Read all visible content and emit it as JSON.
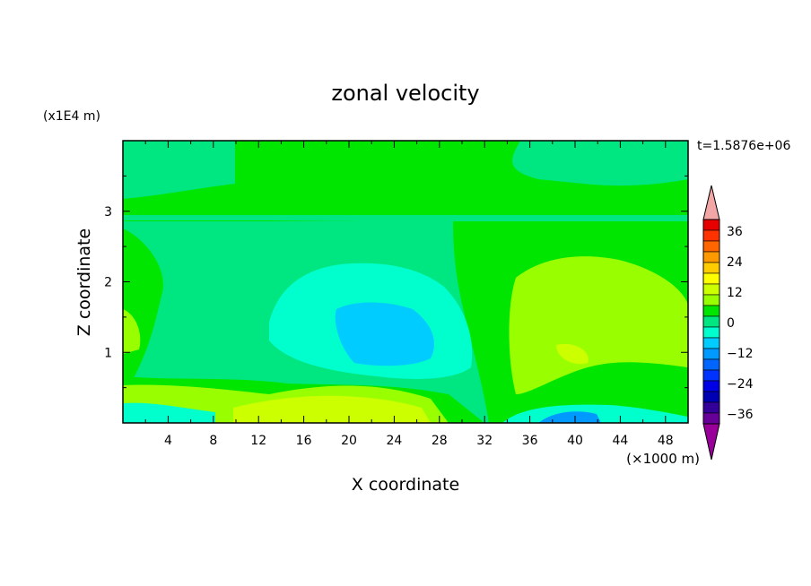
{
  "chart_data": {
    "type": "heatmap",
    "title": "zonal velocity",
    "xlabel": "X coordinate",
    "ylabel": "Z coordinate",
    "x_unit": "(×1000 m)",
    "y_unit": "(x1E4 m)",
    "time_label": "t=1.5876e+06",
    "xlim": [
      0,
      50
    ],
    "ylim": [
      0,
      4
    ],
    "x_ticks": [
      "4",
      "8",
      "12",
      "16",
      "20",
      "24",
      "28",
      "32",
      "36",
      "40",
      "44",
      "48"
    ],
    "y_ticks": [
      "1",
      "2",
      "3"
    ],
    "colorbar": {
      "labels": [
        "36",
        "24",
        "12",
        "0",
        "−12",
        "−24",
        "−36"
      ],
      "colors_top_to_bottom": [
        "#f2a6a6",
        "#e60000",
        "#ff3300",
        "#ff6600",
        "#ff9900",
        "#ffcc00",
        "#ffff00",
        "#ccff00",
        "#99ff00",
        "#00e600",
        "#00e680",
        "#00ffcc",
        "#00ccff",
        "#0099ff",
        "#0066ff",
        "#0033ff",
        "#0000e6",
        "#0000b3",
        "#330099",
        "#660099",
        "#990099"
      ]
    },
    "field_values": {
      "background": 0,
      "upper_band": 3,
      "central_negative_core": -10,
      "right_positive_region": 8,
      "bottom_right_minimum": -20,
      "bottom_center_maximum": 14
    },
    "colors": {
      "c_pos_high": "#ccff00",
      "c_pos": "#99ff00",
      "c_zero_pos": "#00e600",
      "c_zero": "#00e680",
      "c_neg_light": "#00ffcc",
      "c_neg": "#00ccff",
      "c_neg_more": "#0099ff",
      "c_neg_strong": "#0066ff"
    }
  }
}
